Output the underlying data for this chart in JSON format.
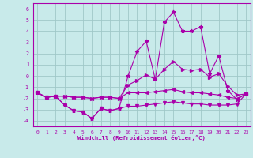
{
  "xlabel": "Windchill (Refroidissement éolien,°C)",
  "background_color": "#c8eaea",
  "grid_color": "#a0c8c8",
  "line_color": "#aa00aa",
  "x": [
    0,
    1,
    2,
    3,
    4,
    5,
    6,
    7,
    8,
    9,
    10,
    11,
    12,
    13,
    14,
    15,
    16,
    17,
    18,
    19,
    20,
    21,
    22,
    23
  ],
  "y_line1": [
    -1.5,
    -1.9,
    -1.8,
    -2.6,
    -3.1,
    -3.2,
    -3.8,
    -2.9,
    -3.1,
    -2.9,
    0.0,
    2.2,
    3.1,
    -0.3,
    4.8,
    5.7,
    4.0,
    4.0,
    4.4,
    0.2,
    1.8,
    -1.3,
    -2.1,
    -1.6
  ],
  "y_line2": [
    -1.5,
    -1.9,
    -1.8,
    -1.8,
    -1.9,
    -1.9,
    -2.0,
    -1.9,
    -1.9,
    -2.0,
    -0.8,
    -0.4,
    0.1,
    -0.3,
    0.6,
    1.3,
    0.6,
    0.5,
    0.6,
    -0.1,
    0.2,
    -0.9,
    -1.7,
    -1.6
  ],
  "y_line3": [
    -1.5,
    -1.9,
    -1.8,
    -1.8,
    -1.9,
    -1.9,
    -2.0,
    -1.9,
    -1.9,
    -2.0,
    -1.5,
    -1.5,
    -1.5,
    -1.4,
    -1.3,
    -1.2,
    -1.4,
    -1.5,
    -1.5,
    -1.6,
    -1.7,
    -1.9,
    -2.0,
    -1.6
  ],
  "y_line4": [
    -1.5,
    -1.9,
    -1.8,
    -2.6,
    -3.1,
    -3.2,
    -3.8,
    -2.9,
    -3.1,
    -2.9,
    -2.7,
    -2.7,
    -2.6,
    -2.5,
    -2.4,
    -2.3,
    -2.4,
    -2.5,
    -2.5,
    -2.6,
    -2.6,
    -2.6,
    -2.5,
    -1.6
  ],
  "ylim": [
    -4.5,
    6.5
  ],
  "xlim": [
    -0.5,
    23.5
  ],
  "yticks": [
    -4,
    -3,
    -2,
    -1,
    0,
    1,
    2,
    3,
    4,
    5,
    6
  ],
  "xticks": [
    0,
    1,
    2,
    3,
    4,
    5,
    6,
    7,
    8,
    9,
    10,
    11,
    12,
    13,
    14,
    15,
    16,
    17,
    18,
    19,
    20,
    21,
    22,
    23
  ],
  "tick_fontsize": 4.5,
  "xlabel_fontsize": 5.2
}
